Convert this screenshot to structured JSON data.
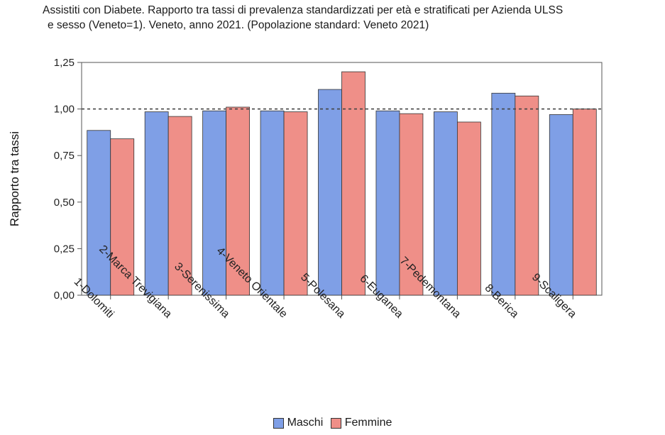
{
  "title": {
    "line1": "Assistiti con Diabete. Rapporto tra tassi di prevalenza standardizzati per età e stratificati per Azienda ULSS",
    "line2": "e sesso (Veneto=1). Veneto, anno 2021. (Popolazione standard: Veneto 2021)"
  },
  "colors": {
    "maschi": "#7f9fe6",
    "femmine": "#ef8f88",
    "reference_line": "#444444"
  },
  "chart_data": {
    "type": "bar",
    "title": "Assistiti con Diabete. Rapporto tra tassi di prevalenza standardizzati per età e stratificati per Azienda ULSS e sesso (Veneto=1). Veneto, anno 2021. (Popolazione standard: Veneto 2021)",
    "xlabel": "",
    "ylabel": "Rapporto tra tassi",
    "ylim": [
      0,
      1.25
    ],
    "yticks": [
      "0,00",
      "0,25",
      "0,50",
      "0,75",
      "1,00",
      "1,25"
    ],
    "reference_line": 1.0,
    "categories": [
      "1-Dolomiti",
      "2-Marca Trevigiana",
      "3-Serenissima",
      "4-Veneto Orientale",
      "5-Polesana",
      "6-Euganea",
      "7-Pedemontana",
      "8-Berica",
      "9-Scaligera"
    ],
    "series": [
      {
        "name": "Maschi",
        "values": [
          0.885,
          0.985,
          0.99,
          0.99,
          1.105,
          0.99,
          0.985,
          1.085,
          0.97
        ]
      },
      {
        "name": "Femmine",
        "values": [
          0.84,
          0.96,
          1.01,
          0.985,
          1.2,
          0.975,
          0.93,
          1.07,
          1.0
        ]
      }
    ],
    "legend_position": "bottom",
    "grid": false
  }
}
